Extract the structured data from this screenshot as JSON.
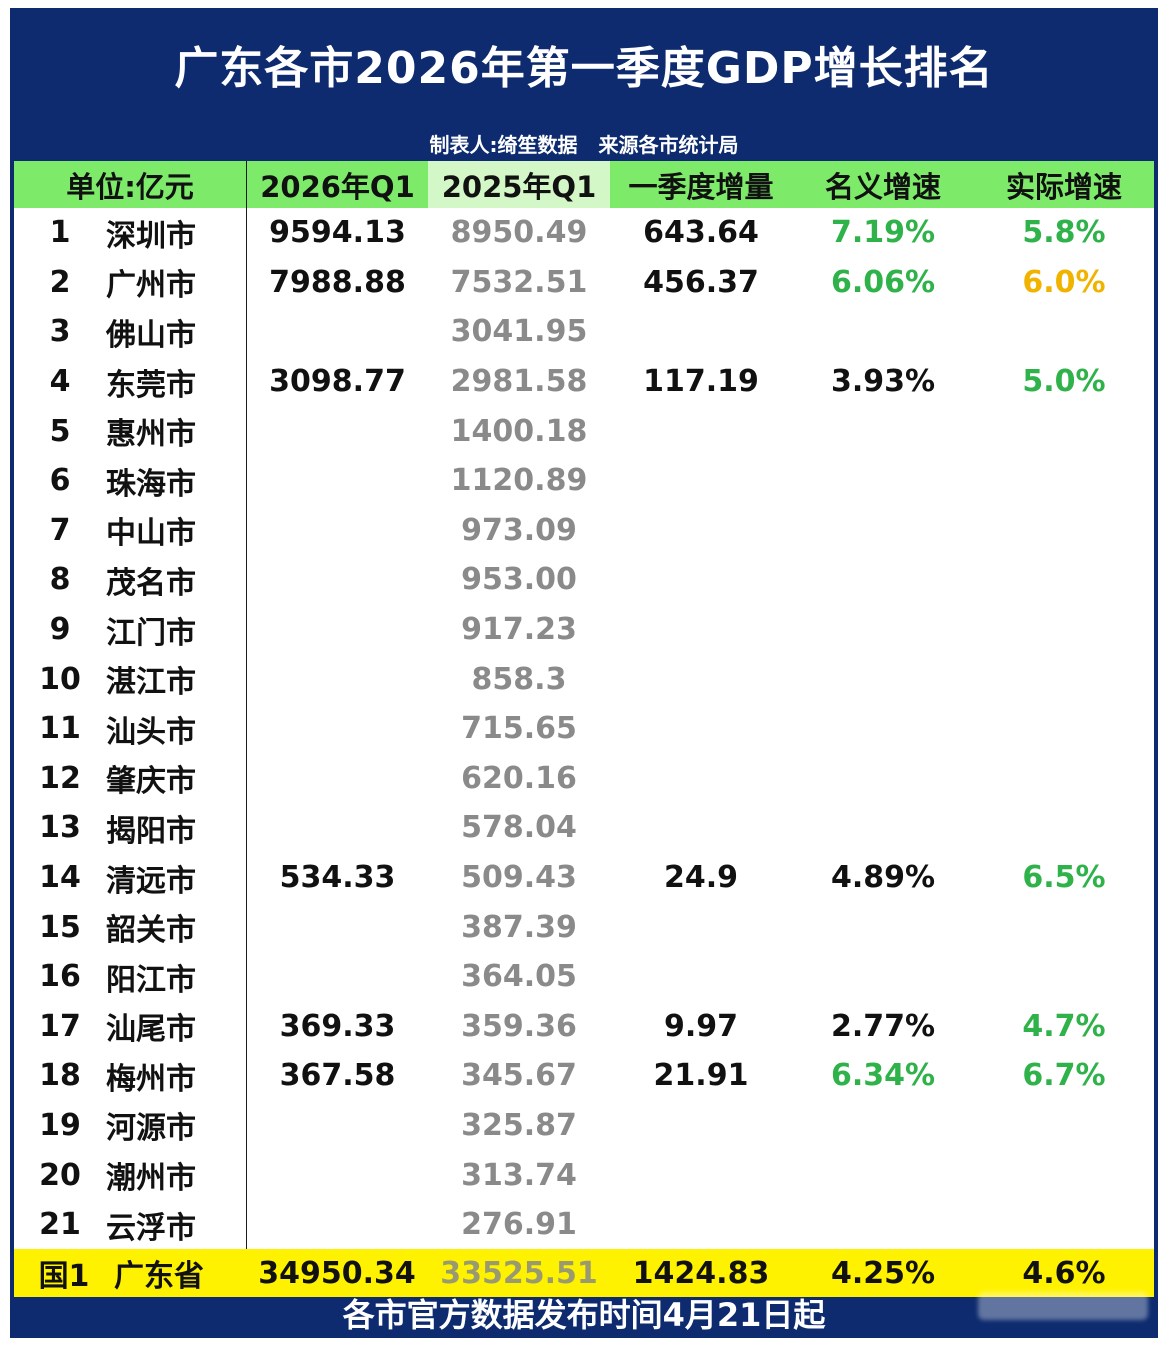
{
  "title": "广东各市2026年第一季度GDP增长排名",
  "subtitle": "制表人:绮笙数据 来源各市统计局",
  "headers": [
    "单位:亿元",
    "2026年Q1",
    "2025年Q1",
    "一季度增量",
    "名义增速",
    "实际增速"
  ],
  "rows": [
    {
      "rank": "1",
      "city": "深圳市",
      "q1_2026": "9594.13",
      "q1_2025": "8950.49",
      "increase": "643.64",
      "nominal": "7.19%",
      "real": "5.8%"
    },
    {
      "rank": "2",
      "city": "广州市",
      "q1_2026": "7988.88",
      "q1_2025": "7532.51",
      "increase": "456.37",
      "nominal": "6.06%",
      "real": "6.0%"
    },
    {
      "rank": "3",
      "city": "佛山市",
      "q1_2026": "",
      "q1_2025": "3041.95",
      "increase": "",
      "nominal": "",
      "real": ""
    },
    {
      "rank": "4",
      "city": "东莞市",
      "q1_2026": "3098.77",
      "q1_2025": "2981.58",
      "increase": "117.19",
      "nominal": "3.93%",
      "real": "5.0%"
    },
    {
      "rank": "5",
      "city": "惠州市",
      "q1_2026": "",
      "q1_2025": "1400.18",
      "increase": "",
      "nominal": "",
      "real": ""
    },
    {
      "rank": "6",
      "city": "珠海市",
      "q1_2026": "",
      "q1_2025": "1120.89",
      "increase": "",
      "nominal": "",
      "real": ""
    },
    {
      "rank": "7",
      "city": "中山市",
      "q1_2026": "",
      "q1_2025": "973.09",
      "increase": "",
      "nominal": "",
      "real": ""
    },
    {
      "rank": "8",
      "city": "茂名市",
      "q1_2026": "",
      "q1_2025": "953.00",
      "increase": "",
      "nominal": "",
      "real": ""
    },
    {
      "rank": "9",
      "city": "江门市",
      "q1_2026": "",
      "q1_2025": "917.23",
      "increase": "",
      "nominal": "",
      "real": ""
    },
    {
      "rank": "10",
      "city": "湛江市",
      "q1_2026": "",
      "q1_2025": "858.3",
      "increase": "",
      "nominal": "",
      "real": ""
    },
    {
      "rank": "11",
      "city": "汕头市",
      "q1_2026": "",
      "q1_2025": "715.65",
      "increase": "",
      "nominal": "",
      "real": ""
    },
    {
      "rank": "12",
      "city": "肇庆市",
      "q1_2026": "",
      "q1_2025": "620.16",
      "increase": "",
      "nominal": "",
      "real": ""
    },
    {
      "rank": "13",
      "city": "揭阳市",
      "q1_2026": "",
      "q1_2025": "578.04",
      "increase": "",
      "nominal": "",
      "real": ""
    },
    {
      "rank": "14",
      "city": "清远市",
      "q1_2026": "534.33",
      "q1_2025": "509.43",
      "increase": "24.9",
      "nominal": "4.89%",
      "real": "6.5%"
    },
    {
      "rank": "15",
      "city": "韶关市",
      "q1_2026": "",
      "q1_2025": "387.39",
      "increase": "",
      "nominal": "",
      "real": ""
    },
    {
      "rank": "16",
      "city": "阳江市",
      "q1_2026": "",
      "q1_2025": "364.05",
      "increase": "",
      "nominal": "",
      "real": ""
    },
    {
      "rank": "17",
      "city": "汕尾市",
      "q1_2026": "369.33",
      "q1_2025": "359.36",
      "increase": "9.97",
      "nominal": "2.77%",
      "real": "4.7%"
    },
    {
      "rank": "18",
      "city": "梅州市",
      "q1_2026": "367.58",
      "q1_2025": "345.67",
      "increase": "21.91",
      "nominal": "6.34%",
      "real": "6.7%"
    },
    {
      "rank": "19",
      "city": "河源市",
      "q1_2026": "",
      "q1_2025": "325.87",
      "increase": "",
      "nominal": "",
      "real": ""
    },
    {
      "rank": "20",
      "city": "潮州市",
      "q1_2026": "",
      "q1_2025": "313.74",
      "increase": "",
      "nominal": "",
      "real": ""
    },
    {
      "rank": "21",
      "city": "云浮市",
      "q1_2026": "",
      "q1_2025": "276.91",
      "increase": "",
      "nominal": "",
      "real": ""
    }
  ],
  "total": {
    "rank": "国1",
    "city": "广东省",
    "q1_2026": "34950.34",
    "q1_2025": "33525.51",
    "increase": "1424.83",
    "nominal": "4.25%",
    "real": "4.6%"
  },
  "footer": "各市官方数据发布时间4月21日起",
  "colors": {
    "frame": "#0d2b6e",
    "header_green": "#7dea6a",
    "total_yellow": "#fff200",
    "up_green": "#2fb24a",
    "gold": "#f0b400",
    "muted": "#8a8a8a"
  }
}
